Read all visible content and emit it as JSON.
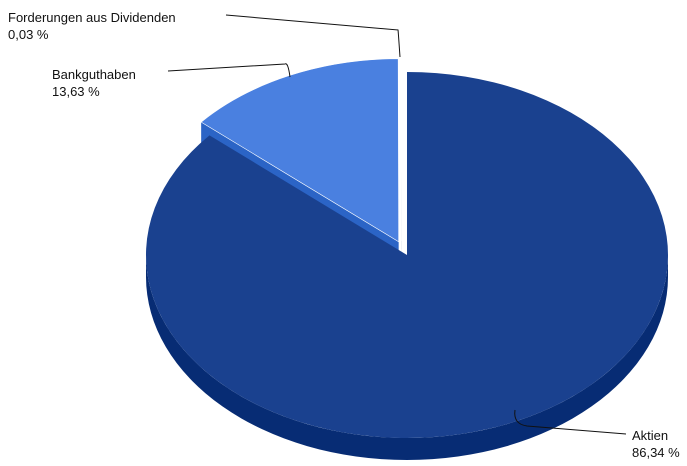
{
  "chart_data": {
    "type": "pie",
    "style": "3d-exploded",
    "title": "",
    "series": [
      {
        "values": [
          86.34,
          13.63,
          0.03
        ],
        "labels": [
          "Aktien",
          "Bankguthaben",
          "Forderungen aus Dividenden"
        ],
        "value_labels": [
          "86,34 %",
          "13,63 %",
          "0,03 %"
        ],
        "colors": [
          "#1a418f",
          "#4a80e0",
          "#1a418f"
        ]
      }
    ],
    "legend": "none",
    "grid": false
  }
}
